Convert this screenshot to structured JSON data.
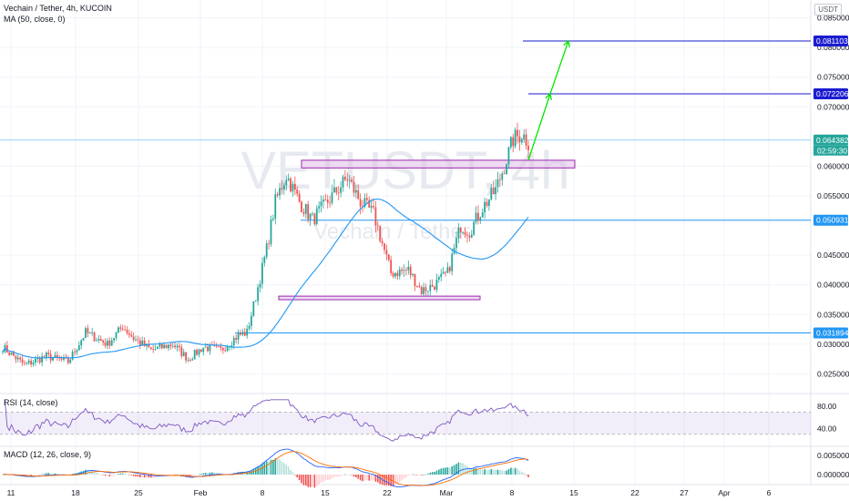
{
  "header": {
    "title": "Vechain / Tether, 4h, KUCOIN",
    "ma_label": "MA (50, close, 0)",
    "currency": "USDT"
  },
  "watermark": {
    "symbol": "VETUSDT, 4h",
    "name": "Vechain / Tether"
  },
  "colors": {
    "up": "#26a69a",
    "down": "#ef5350",
    "ma": "#2196f3",
    "rsi": "#7e57c2",
    "hline": "#2196f3",
    "target": "#1b1bd1",
    "zone_fill": "#e1bee7",
    "zone_border": "#9c27b0",
    "arrow": "#00e600",
    "price": "#26a69a"
  },
  "chart_data": {
    "type": "candlestick",
    "price_axis": {
      "ticks": [
        "0.0850000",
        "0.0800000",
        "0.0750000",
        "0.0700000",
        "0.0600000",
        "0.0550000",
        "0.0450000",
        "0.0400000",
        "0.0350000",
        "0.0300000",
        "0.0250000"
      ],
      "range": [
        0.022,
        0.088
      ]
    },
    "time_axis": {
      "labels": [
        "11",
        "18",
        "25",
        "Feb",
        "8",
        "15",
        "22",
        "Mar",
        "8",
        "15",
        "22",
        "27",
        "Apr",
        "6"
      ]
    },
    "price_labels": {
      "target2": "0.0811032",
      "target1": "0.0722065",
      "current": "0.0643824",
      "countdown": "02:59:30",
      "resistance": "0.0509315",
      "support": "0.0318948"
    },
    "levels": {
      "target2": 0.0811,
      "target1": 0.0722,
      "current": 0.0644,
      "resistance": 0.0509,
      "support": 0.0319
    },
    "zones": [
      {
        "low": 0.0597,
        "high": 0.061
      },
      {
        "low": 0.0375,
        "high": 0.0381
      }
    ],
    "rsi": {
      "label": "RSI (14, close)",
      "ticks": [
        "80.00",
        "40.00"
      ],
      "upper": 70,
      "lower": 30
    },
    "macd": {
      "label": "MACD (12, 26, close, 9)",
      "ticks": [
        "0.0050000",
        "0.0000000"
      ]
    },
    "path_keys": [
      [
        0,
        0.0295
      ],
      [
        10,
        0.0265
      ],
      [
        20,
        0.028
      ],
      [
        30,
        0.027
      ],
      [
        38,
        0.032
      ],
      [
        48,
        0.03
      ],
      [
        55,
        0.033
      ],
      [
        60,
        0.031
      ],
      [
        68,
        0.029
      ],
      [
        78,
        0.03
      ],
      [
        85,
        0.0275
      ],
      [
        92,
        0.0295
      ],
      [
        100,
        0.029
      ],
      [
        108,
        0.0315
      ],
      [
        112,
        0.032
      ],
      [
        116,
        0.038
      ],
      [
        121,
        0.046
      ],
      [
        125,
        0.054
      ],
      [
        130,
        0.0585
      ],
      [
        136,
        0.054
      ],
      [
        142,
        0.051
      ],
      [
        150,
        0.0545
      ],
      [
        158,
        0.058
      ],
      [
        164,
        0.054
      ],
      [
        170,
        0.052
      ],
      [
        174,
        0.047
      ],
      [
        178,
        0.042
      ],
      [
        186,
        0.0425
      ],
      [
        192,
        0.039
      ],
      [
        198,
        0.04
      ],
      [
        204,
        0.042
      ],
      [
        210,
        0.05
      ],
      [
        214,
        0.049
      ],
      [
        220,
        0.053
      ],
      [
        226,
        0.056
      ],
      [
        230,
        0.06
      ],
      [
        234,
        0.0645
      ],
      [
        238,
        0.0655
      ],
      [
        241,
        0.064
      ]
    ]
  }
}
